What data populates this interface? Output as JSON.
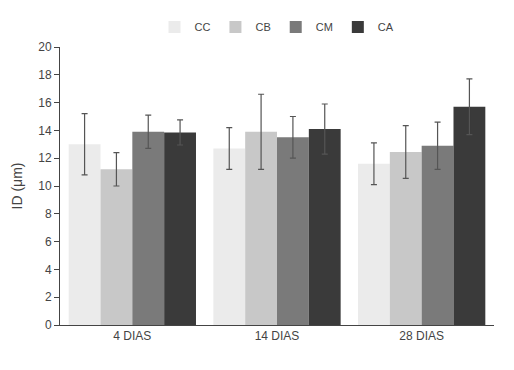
{
  "chart_data": {
    "type": "bar",
    "categories": [
      "4 DIAS",
      "14 DIAS",
      "28 DIAS"
    ],
    "series": [
      {
        "name": "CC",
        "color": "#ebebeb",
        "values": [
          13.0,
          12.7,
          11.6
        ],
        "errors": [
          2.2,
          1.5,
          1.5
        ]
      },
      {
        "name": "CB",
        "color": "#c8c8c8",
        "values": [
          11.2,
          13.9,
          12.45
        ],
        "errors": [
          1.2,
          2.7,
          1.9
        ]
      },
      {
        "name": "CM",
        "color": "#7a7a7a",
        "values": [
          13.9,
          13.5,
          12.9
        ],
        "errors": [
          1.2,
          1.5,
          1.7
        ]
      },
      {
        "name": "CA",
        "color": "#3a3a3a",
        "values": [
          13.85,
          14.1,
          15.7
        ],
        "errors": [
          0.9,
          1.8,
          2.0
        ]
      }
    ],
    "ylabel": "ID (μm)",
    "ylim": [
      0,
      20
    ],
    "yticks": [
      0,
      2,
      4,
      6,
      8,
      10,
      12,
      14,
      16,
      18,
      20
    ],
    "grid": false,
    "legend": "top"
  }
}
